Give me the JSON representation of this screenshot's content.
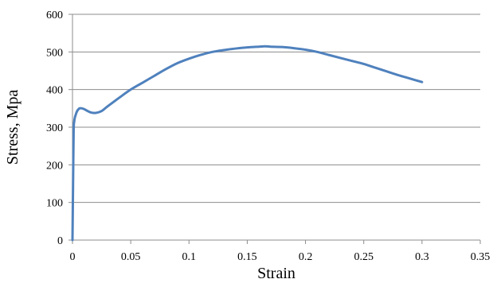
{
  "chart_data": {
    "type": "line",
    "xlabel": "Strain",
    "ylabel": "Stress, Mpa",
    "xlim": [
      0,
      0.35
    ],
    "ylim": [
      0,
      600
    ],
    "x_ticks": [
      0,
      0.05,
      0.1,
      0.15,
      0.2,
      0.25,
      0.3,
      0.35
    ],
    "x_tick_labels": [
      "0",
      "0.05",
      "0.1",
      "0.15",
      "0.2",
      "0.25",
      "0.3",
      "0.35"
    ],
    "y_ticks": [
      0,
      100,
      200,
      300,
      400,
      500,
      600
    ],
    "y_tick_labels": [
      "0",
      "100",
      "200",
      "300",
      "400",
      "500",
      "600"
    ],
    "grid": "horizontal",
    "legend": "none",
    "series": [
      {
        "color": "#4f81bd",
        "x": [
          0,
          0.0005,
          0.001,
          0.0015,
          0.002,
          0.003,
          0.004,
          0.006,
          0.008,
          0.01,
          0.013,
          0.016,
          0.02,
          0.025,
          0.03,
          0.04,
          0.05,
          0.06,
          0.07,
          0.08,
          0.09,
          0.1,
          0.11,
          0.12,
          0.13,
          0.14,
          0.15,
          0.16,
          0.165,
          0.17,
          0.18,
          0.19,
          0.2,
          0.21,
          0.22,
          0.23,
          0.24,
          0.25,
          0.26,
          0.27,
          0.28,
          0.29,
          0.3
        ],
        "y": [
          0,
          150,
          290,
          315,
          325,
          335,
          343,
          350,
          350,
          348,
          343,
          339,
          338,
          343,
          355,
          378,
          400,
          418,
          436,
          454,
          470,
          482,
          492,
          500,
          505,
          509,
          512,
          514,
          515,
          514,
          513,
          510,
          506,
          500,
          492,
          484,
          476,
          468,
          458,
          448,
          438,
          429,
          420
        ]
      }
    ]
  }
}
